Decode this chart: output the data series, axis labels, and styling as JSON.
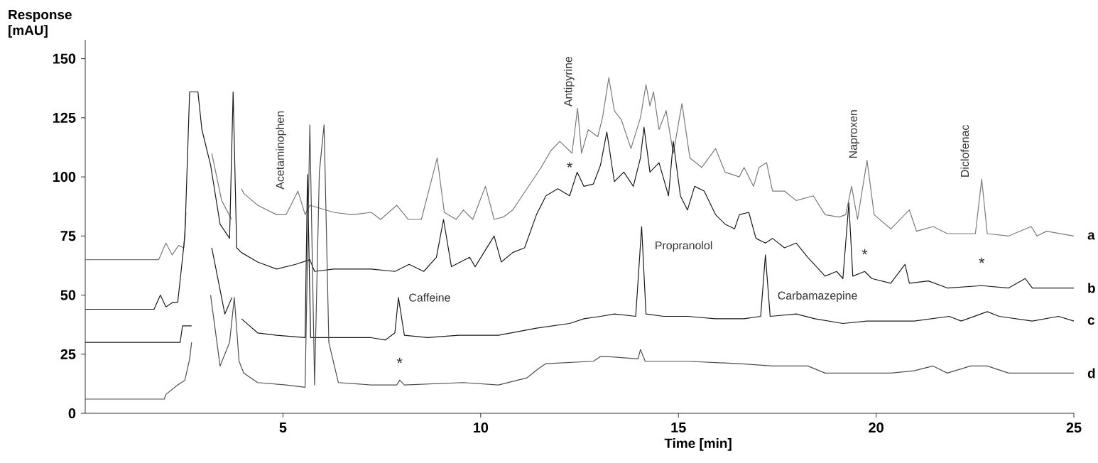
{
  "chart_data": {
    "type": "line",
    "xlabel": "Time [min]",
    "ylabel": "Response [mAU]",
    "xlim": [
      0,
      25
    ],
    "ylim": [
      0,
      158
    ],
    "xticks": [
      5,
      10,
      15,
      20,
      25
    ],
    "yticks": [
      0,
      25,
      50,
      75,
      100,
      125,
      150
    ],
    "line_style": "solid",
    "series": [
      {
        "name": "a",
        "color": "#7a7a7a",
        "x": [
          0,
          1.86,
          2.04,
          2.2,
          2.36,
          2.49,
          2.55,
          2.7,
          2.8,
          2.95,
          3.2,
          3.45,
          3.7,
          3.85,
          3.95,
          4.01,
          4.36,
          4.84,
          5.08,
          5.38,
          5.56,
          5.68,
          6.28,
          6.75,
          7.23,
          7.47,
          7.88,
          8.17,
          8.5,
          8.9,
          9.08,
          9.38,
          9.56,
          9.8,
          10.12,
          10.34,
          10.57,
          10.81,
          11.05,
          11.29,
          11.53,
          11.77,
          12.0,
          12.31,
          12.45,
          12.55,
          12.72,
          12.96,
          13.08,
          13.24,
          13.38,
          13.56,
          13.8,
          14.04,
          14.18,
          14.28,
          14.37,
          14.51,
          14.69,
          14.87,
          15.09,
          15.29,
          15.59,
          15.94,
          16.18,
          16.54,
          16.66,
          16.9,
          17.04,
          17.23,
          17.38,
          17.68,
          17.98,
          18.41,
          18.71,
          19.06,
          19.23,
          19.38,
          19.53,
          19.77,
          19.95,
          20.37,
          20.84,
          21.02,
          21.44,
          21.8,
          22.51,
          22.67,
          22.81,
          23.35,
          23.92,
          24.07,
          24.31,
          25
        ],
        "values": [
          65,
          65,
          72,
          67,
          71,
          70,
          85,
          null,
          null,
          null,
          110,
          90,
          82,
          null,
          95,
          93,
          88,
          84,
          84,
          94,
          84,
          88,
          85,
          84,
          85,
          82,
          88,
          82,
          82,
          108,
          85,
          82,
          86,
          82,
          96,
          82,
          83,
          86,
          92,
          98,
          104,
          111,
          115,
          110,
          129,
          110,
          120,
          117,
          125,
          142,
          128,
          124,
          112,
          125,
          139,
          130,
          136,
          120,
          128,
          110,
          131,
          108,
          104,
          112,
          102,
          100,
          104,
          96,
          104,
          106,
          94,
          94,
          90,
          92,
          84,
          83,
          84,
          96,
          82,
          107,
          84,
          78,
          86,
          77,
          79,
          76,
          76,
          99,
          76,
          75,
          79,
          75,
          77,
          75
        ]
      },
      {
        "name": "b",
        "color": "#1a1a1a",
        "x": [
          0,
          1.74,
          1.9,
          2.04,
          2.22,
          2.34,
          2.52,
          2.64,
          2.85,
          2.95,
          3.17,
          3.41,
          3.65,
          3.74,
          3.83,
          3.95,
          4.36,
          4.84,
          5.32,
          5.68,
          5.8,
          6.28,
          7.23,
          7.83,
          8.19,
          8.56,
          8.88,
          9.06,
          9.26,
          9.72,
          9.86,
          10.34,
          10.52,
          10.81,
          11.11,
          11.41,
          11.65,
          11.95,
          12.25,
          12.44,
          12.61,
          12.85,
          13.03,
          13.19,
          13.38,
          13.62,
          13.86,
          14.04,
          14.13,
          14.28,
          14.51,
          14.75,
          14.87,
          15.05,
          15.23,
          15.41,
          15.65,
          15.94,
          16.18,
          16.42,
          16.54,
          16.78,
          16.96,
          17.2,
          17.38,
          17.68,
          17.98,
          18.27,
          18.71,
          19.0,
          19.16,
          19.31,
          19.41,
          19.71,
          19.89,
          20.37,
          20.73,
          20.84,
          21.32,
          21.8,
          22.67,
          23.35,
          23.77,
          23.95,
          25
        ],
        "values": [
          44,
          44,
          50,
          45,
          47,
          47,
          75,
          136,
          136,
          120,
          105,
          80,
          74,
          136,
          70,
          68,
          64,
          61,
          63,
          65,
          60,
          61,
          61,
          60,
          63,
          60,
          66,
          82,
          62,
          66,
          62,
          75,
          64,
          68,
          70,
          84,
          92,
          95,
          92,
          102,
          96,
          97,
          105,
          119,
          98,
          102,
          96,
          108,
          121,
          102,
          106,
          92,
          115,
          92,
          86,
          96,
          94,
          84,
          80,
          78,
          84,
          85,
          74,
          72,
          74,
          70,
          72,
          66,
          58,
          60,
          57,
          89,
          58,
          60,
          57,
          55,
          63,
          55,
          56,
          53,
          54,
          53,
          57,
          53,
          53
        ]
      },
      {
        "name": "c",
        "color": "#1a1a1a",
        "x": [
          0,
          2.4,
          2.46,
          2.69,
          2.8,
          2.9,
          3.0,
          3.2,
          3.53,
          3.71,
          3.83,
          3.95,
          4.36,
          4.84,
          5.56,
          5.62,
          5.7,
          6.28,
          7.23,
          7.59,
          7.83,
          7.92,
          8.07,
          8.66,
          9.44,
          10.45,
          11.41,
          12.25,
          12.61,
          13.03,
          13.38,
          13.92,
          14.07,
          14.18,
          14.63,
          15.23,
          15.94,
          16.66,
          17.08,
          17.2,
          17.32,
          17.98,
          18.45,
          19.16,
          19.77,
          20.96,
          21.85,
          22.15,
          22.81,
          23.11,
          23.95,
          24.61,
          25
        ],
        "values": [
          30,
          30,
          37,
          37,
          null,
          null,
          null,
          70,
          42,
          49,
          null,
          40,
          34,
          33,
          32,
          101,
          32,
          32,
          32,
          31,
          34,
          49,
          33,
          32,
          33,
          33,
          36,
          38,
          40,
          41,
          42,
          41,
          79,
          42,
          41,
          41,
          40,
          40,
          41,
          67,
          41,
          42,
          40,
          38,
          39,
          39,
          41,
          39,
          43,
          41,
          39,
          41,
          39
        ]
      },
      {
        "name": "d",
        "color": "#4d4d4d",
        "x": [
          0,
          2.0,
          2.04,
          2.34,
          2.52,
          2.64,
          2.69,
          2.88,
          3.17,
          3.41,
          3.65,
          3.77,
          3.89,
          4.01,
          4.36,
          5.08,
          5.56,
          5.68,
          5.8,
          5.92,
          6.04,
          6.16,
          6.4,
          7.23,
          7.88,
          7.95,
          8.07,
          9.56,
          10.45,
          11.17,
          11.47,
          11.65,
          12.85,
          13.03,
          13.21,
          13.98,
          14.04,
          14.16,
          15.23,
          16.54,
          17.38,
          18.27,
          18.71,
          20.37,
          20.96,
          21.44,
          21.8,
          22.39,
          22.81,
          23.35,
          25
        ],
        "values": [
          6,
          6,
          8,
          12,
          14,
          23,
          30,
          null,
          50,
          20,
          30,
          49,
          22,
          17,
          13,
          12,
          11,
          122,
          12,
          102,
          122,
          30,
          13,
          12,
          12,
          14,
          12,
          13,
          12,
          15,
          19,
          21,
          22,
          24,
          24,
          23,
          27,
          22,
          22,
          21,
          20,
          20,
          17,
          17,
          18,
          20,
          17,
          20,
          20,
          17,
          17
        ]
      }
    ],
    "annotations": [
      {
        "text": "Acetaminophen",
        "x": 5.38,
        "y": 94
      },
      {
        "text": "Antipyrine",
        "x": 12.45,
        "y": 129
      },
      {
        "text": "Naproxen",
        "x": 19.77,
        "y": 107
      },
      {
        "text": "Diclofenac",
        "x": 22.67,
        "y": 99
      },
      {
        "text": "Caffeine",
        "x": 7.92,
        "y": 49
      },
      {
        "text": "Propranolol",
        "x": 14.07,
        "y": 79
      },
      {
        "text": "Carbamazepine",
        "x": 17.32,
        "y": 41
      },
      {
        "text": "*",
        "x": 12.25,
        "y": 92
      },
      {
        "text": "*",
        "x": 19.71,
        "y": 60
      },
      {
        "text": "*",
        "x": 22.67,
        "y": 54
      },
      {
        "text": "*",
        "x": 7.95,
        "y": 14
      }
    ]
  }
}
